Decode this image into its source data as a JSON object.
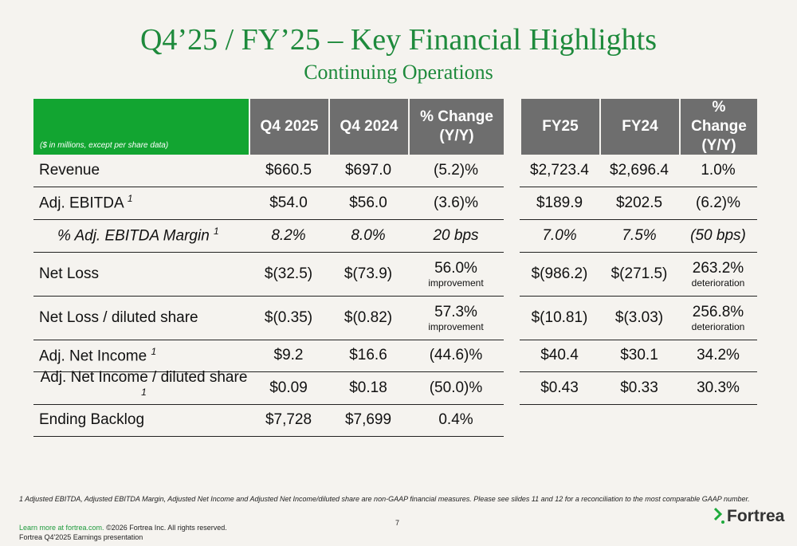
{
  "title": "Q4’25 / FY’25 – Key Financial Highlights",
  "subtitle": "Continuing Operations",
  "table": {
    "note": "($ in millions, except per share data)",
    "quarter_columns": [
      "Q4 2025",
      "Q4 2024",
      "% Change (Y/Y)"
    ],
    "year_columns": [
      "FY25",
      "FY24",
      "% Change (Y/Y)"
    ],
    "rows": [
      {
        "label": "Revenue",
        "q4_2025": "$660.5",
        "q4_2024": "$697.0",
        "q_change": "(5.2)%",
        "fy25": "$2,723.4",
        "fy24": "$2,696.4",
        "fy_change": "1.0%"
      },
      {
        "label": "Adj. EBITDA",
        "footnote": "1",
        "q4_2025": "$54.0",
        "q4_2024": "$56.0",
        "q_change": "(3.6)%",
        "fy25": "$189.9",
        "fy24": "$202.5",
        "fy_change": "(6.2)%"
      },
      {
        "label": "% Adj. EBITDA Margin",
        "footnote": "1",
        "q4_2025": "8.2%",
        "q4_2024": "8.0%",
        "q_change": "20 bps",
        "fy25": "7.0%",
        "fy24": "7.5%",
        "fy_change": "(50 bps)"
      },
      {
        "label": "Net Loss",
        "q4_2025": "$(32.5)",
        "q4_2024": "$(73.9)",
        "q_change": "56.0%",
        "q_change_note": "improvement",
        "fy25": "$(986.2)",
        "fy24": "$(271.5)",
        "fy_change": "263.2%",
        "fy_change_note": "deterioration"
      },
      {
        "label": "Net Loss / diluted share",
        "q4_2025": "$(0.35)",
        "q4_2024": "$(0.82)",
        "q_change": "57.3%",
        "q_change_note": "improvement",
        "fy25": "$(10.81)",
        "fy24": "$(3.03)",
        "fy_change": "256.8%",
        "fy_change_note": "deterioration"
      },
      {
        "label": "Adj. Net Income",
        "footnote": "1",
        "q4_2025": "$9.2",
        "q4_2024": "$16.6",
        "q_change": "(44.6)%",
        "fy25": "$40.4",
        "fy24": "$30.1",
        "fy_change": "34.2%"
      },
      {
        "label": "Adj. Net Income / diluted share",
        "footnote": "1",
        "q4_2025": "$0.09",
        "q4_2024": "$0.18",
        "q_change": "(50.0)%",
        "fy25": "$0.43",
        "fy24": "$0.33",
        "fy_change": "30.3%"
      },
      {
        "label": "Ending Backlog",
        "q4_2025": "$7,728",
        "q4_2024": "$7,699",
        "q_change": "0.4%"
      }
    ]
  },
  "footnote": "1 Adjusted EBITDA, Adjusted EBITDA Margin, Adjusted Net Income and Adjusted Net Income/diluted share are non-GAAP financial measures.  Please see slides 11 and 12  for a reconciliation to the most comparable GAAP number.",
  "footer": {
    "link": "Learn more at fortrea.com.",
    "copyright": "©2026 Fortrea Inc. All rights reserved.",
    "presentation": "Fortrea Q4'2025 Earnings presentation",
    "page": "7",
    "logo": "Fortrea"
  }
}
